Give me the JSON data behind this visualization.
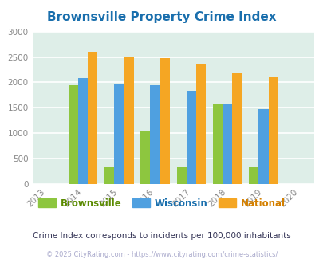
{
  "title": "Brownsville Property Crime Index",
  "years": [
    2013,
    2014,
    2015,
    2016,
    2017,
    2018,
    2019,
    2020
  ],
  "data_years": [
    2014,
    2015,
    2016,
    2017,
    2018,
    2019
  ],
  "brownsville": [
    1950,
    350,
    1030,
    350,
    1560,
    350
  ],
  "wisconsin": [
    2090,
    1980,
    1950,
    1830,
    1560,
    1480
  ],
  "national": [
    2600,
    2500,
    2470,
    2360,
    2190,
    2100
  ],
  "bar_colors": {
    "brownsville": "#8dc63f",
    "wisconsin": "#4fa0e0",
    "national": "#f5a623"
  },
  "ylim": [
    0,
    3000
  ],
  "yticks": [
    0,
    500,
    1000,
    1500,
    2000,
    2500,
    3000
  ],
  "xlim": [
    2012.6,
    2020.4
  ],
  "bg_color": "#deeee8",
  "grid_color": "#ffffff",
  "title_color": "#1a6fad",
  "annotation": "Crime Index corresponds to incidents per 100,000 inhabitants",
  "copyright": "© 2025 CityRating.com - https://www.cityrating.com/crime-statistics/",
  "legend_labels": [
    "Brownsville",
    "Wisconsin",
    "National"
  ],
  "legend_label_colors": [
    "#5a8a00",
    "#1a6fad",
    "#d48000"
  ],
  "bar_width": 0.27
}
